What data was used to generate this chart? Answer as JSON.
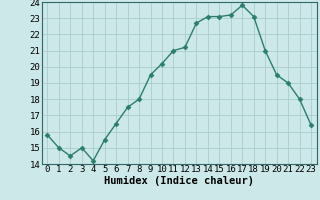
{
  "title": "",
  "xlabel": "Humidex (Indice chaleur)",
  "x_values": [
    0,
    1,
    2,
    3,
    4,
    5,
    6,
    7,
    8,
    9,
    10,
    11,
    12,
    13,
    14,
    15,
    16,
    17,
    18,
    19,
    20,
    21,
    22,
    23
  ],
  "y_values": [
    15.8,
    15.0,
    14.5,
    15.0,
    14.2,
    15.5,
    16.5,
    17.5,
    18.0,
    19.5,
    20.2,
    21.0,
    21.2,
    22.7,
    23.1,
    23.1,
    23.2,
    23.8,
    23.1,
    21.0,
    19.5,
    19.0,
    18.0,
    16.4
  ],
  "line_color": "#2d7d6e",
  "marker": "D",
  "marker_size": 2.5,
  "bg_color": "#cce8e8",
  "grid_color": "#aacccc",
  "ylim": [
    14,
    24
  ],
  "xlim": [
    -0.5,
    23.5
  ],
  "yticks": [
    14,
    15,
    16,
    17,
    18,
    19,
    20,
    21,
    22,
    23,
    24
  ],
  "xticks": [
    0,
    1,
    2,
    3,
    4,
    5,
    6,
    7,
    8,
    9,
    10,
    11,
    12,
    13,
    14,
    15,
    16,
    17,
    18,
    19,
    20,
    21,
    22,
    23
  ],
  "xlabel_fontsize": 7.5,
  "tick_fontsize": 6.5,
  "linewidth": 1.0
}
